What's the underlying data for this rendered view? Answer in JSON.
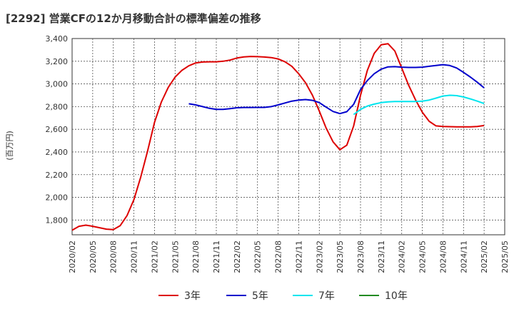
{
  "chart_data": {
    "type": "line",
    "title": "[2292]  営業CFの12か月移動合計の標準偏差の推移",
    "ylabel": "(百万円)",
    "xlabel": "",
    "ylim": [
      1670,
      3400
    ],
    "yticks": [
      1800,
      2000,
      2200,
      2400,
      2600,
      2800,
      3000,
      3200,
      3400
    ],
    "ytick_labels": [
      "1,800",
      "2,000",
      "2,200",
      "2,400",
      "2,600",
      "2,800",
      "3,000",
      "3,200",
      "3,400"
    ],
    "xlim": [
      "2020/02",
      "2025/05"
    ],
    "xtick_labels": [
      "2020/02",
      "2020/05",
      "2020/08",
      "2020/11",
      "2021/02",
      "2021/05",
      "2021/08",
      "2021/11",
      "2022/02",
      "2022/05",
      "2022/08",
      "2022/11",
      "2023/02",
      "2023/05",
      "2023/08",
      "2023/11",
      "2024/02",
      "2024/05",
      "2024/08",
      "2024/11",
      "2025/02",
      "2025/05"
    ],
    "grid": true,
    "legend_position": "bottom",
    "series": [
      {
        "name": "3年",
        "color": "#dd0000",
        "points": [
          [
            "2020/02",
            1710
          ],
          [
            "2020/03",
            1745
          ],
          [
            "2020/04",
            1755
          ],
          [
            "2020/05",
            1745
          ],
          [
            "2020/06",
            1732
          ],
          [
            "2020/07",
            1720
          ],
          [
            "2020/08",
            1715
          ],
          [
            "2020/09",
            1750
          ],
          [
            "2020/10",
            1840
          ],
          [
            "2020/11",
            1980
          ],
          [
            "2020/12",
            2180
          ],
          [
            "2021/01",
            2410
          ],
          [
            "2021/02",
            2660
          ],
          [
            "2021/03",
            2840
          ],
          [
            "2021/04",
            2970
          ],
          [
            "2021/05",
            3060
          ],
          [
            "2021/06",
            3120
          ],
          [
            "2021/07",
            3160
          ],
          [
            "2021/08",
            3185
          ],
          [
            "2021/09",
            3193
          ],
          [
            "2021/10",
            3195
          ],
          [
            "2021/11",
            3195
          ],
          [
            "2021/12",
            3200
          ],
          [
            "2022/01",
            3210
          ],
          [
            "2022/02",
            3228
          ],
          [
            "2022/03",
            3238
          ],
          [
            "2022/04",
            3242
          ],
          [
            "2022/05",
            3240
          ],
          [
            "2022/06",
            3237
          ],
          [
            "2022/07",
            3232
          ],
          [
            "2022/08",
            3220
          ],
          [
            "2022/09",
            3195
          ],
          [
            "2022/10",
            3155
          ],
          [
            "2022/11",
            3090
          ],
          [
            "2022/12",
            3010
          ],
          [
            "2023/01",
            2900
          ],
          [
            "2023/02",
            2760
          ],
          [
            "2023/03",
            2610
          ],
          [
            "2023/04",
            2490
          ],
          [
            "2023/05",
            2420
          ],
          [
            "2023/06",
            2460
          ],
          [
            "2023/07",
            2630
          ],
          [
            "2023/08",
            2900
          ],
          [
            "2023/09",
            3120
          ],
          [
            "2023/10",
            3270
          ],
          [
            "2023/11",
            3345
          ],
          [
            "2023/12",
            3355
          ],
          [
            "2024/01",
            3290
          ],
          [
            "2024/02",
            3140
          ],
          [
            "2024/03",
            2990
          ],
          [
            "2024/04",
            2860
          ],
          [
            "2024/05",
            2750
          ],
          [
            "2024/06",
            2670
          ],
          [
            "2024/07",
            2630
          ],
          [
            "2024/08",
            2625
          ],
          [
            "2024/09",
            2623
          ],
          [
            "2024/10",
            2622
          ],
          [
            "2024/11",
            2621
          ],
          [
            "2024/12",
            2622
          ],
          [
            "2025/01",
            2625
          ],
          [
            "2025/02",
            2633
          ]
        ]
      },
      {
        "name": "5年",
        "color": "#0000cc",
        "points": [
          [
            "2021/07",
            2825
          ],
          [
            "2021/08",
            2815
          ],
          [
            "2021/09",
            2800
          ],
          [
            "2021/10",
            2785
          ],
          [
            "2021/11",
            2775
          ],
          [
            "2021/12",
            2775
          ],
          [
            "2022/01",
            2782
          ],
          [
            "2022/02",
            2790
          ],
          [
            "2022/03",
            2792
          ],
          [
            "2022/04",
            2792
          ],
          [
            "2022/05",
            2793
          ],
          [
            "2022/06",
            2793
          ],
          [
            "2022/07",
            2800
          ],
          [
            "2022/08",
            2815
          ],
          [
            "2022/09",
            2832
          ],
          [
            "2022/10",
            2848
          ],
          [
            "2022/11",
            2858
          ],
          [
            "2022/12",
            2862
          ],
          [
            "2023/01",
            2855
          ],
          [
            "2023/02",
            2835
          ],
          [
            "2023/03",
            2795
          ],
          [
            "2023/04",
            2757
          ],
          [
            "2023/05",
            2738
          ],
          [
            "2023/06",
            2755
          ],
          [
            "2023/07",
            2820
          ],
          [
            "2023/08",
            2950
          ],
          [
            "2023/09",
            3030
          ],
          [
            "2023/10",
            3090
          ],
          [
            "2023/11",
            3130
          ],
          [
            "2023/12",
            3150
          ],
          [
            "2024/01",
            3152
          ],
          [
            "2024/02",
            3148
          ],
          [
            "2024/03",
            3145
          ],
          [
            "2024/04",
            3145
          ],
          [
            "2024/05",
            3148
          ],
          [
            "2024/06",
            3155
          ],
          [
            "2024/07",
            3162
          ],
          [
            "2024/08",
            3170
          ],
          [
            "2024/09",
            3162
          ],
          [
            "2024/10",
            3140
          ],
          [
            "2024/11",
            3102
          ],
          [
            "2024/12",
            3060
          ],
          [
            "2025/01",
            3015
          ],
          [
            "2025/02",
            2965
          ]
        ]
      },
      {
        "name": "7年",
        "color": "#00e5ee",
        "points": [
          [
            "2023/07",
            2730
          ],
          [
            "2023/08",
            2775
          ],
          [
            "2023/09",
            2805
          ],
          [
            "2023/10",
            2822
          ],
          [
            "2023/11",
            2835
          ],
          [
            "2023/12",
            2842
          ],
          [
            "2024/01",
            2845
          ],
          [
            "2024/02",
            2845
          ],
          [
            "2024/03",
            2845
          ],
          [
            "2024/04",
            2845
          ],
          [
            "2024/05",
            2848
          ],
          [
            "2024/06",
            2858
          ],
          [
            "2024/07",
            2875
          ],
          [
            "2024/08",
            2893
          ],
          [
            "2024/09",
            2900
          ],
          [
            "2024/10",
            2897
          ],
          [
            "2024/11",
            2885
          ],
          [
            "2024/12",
            2868
          ],
          [
            "2025/01",
            2848
          ],
          [
            "2025/02",
            2827
          ]
        ]
      },
      {
        "name": "10年",
        "color": "#228b22",
        "points": []
      }
    ]
  }
}
